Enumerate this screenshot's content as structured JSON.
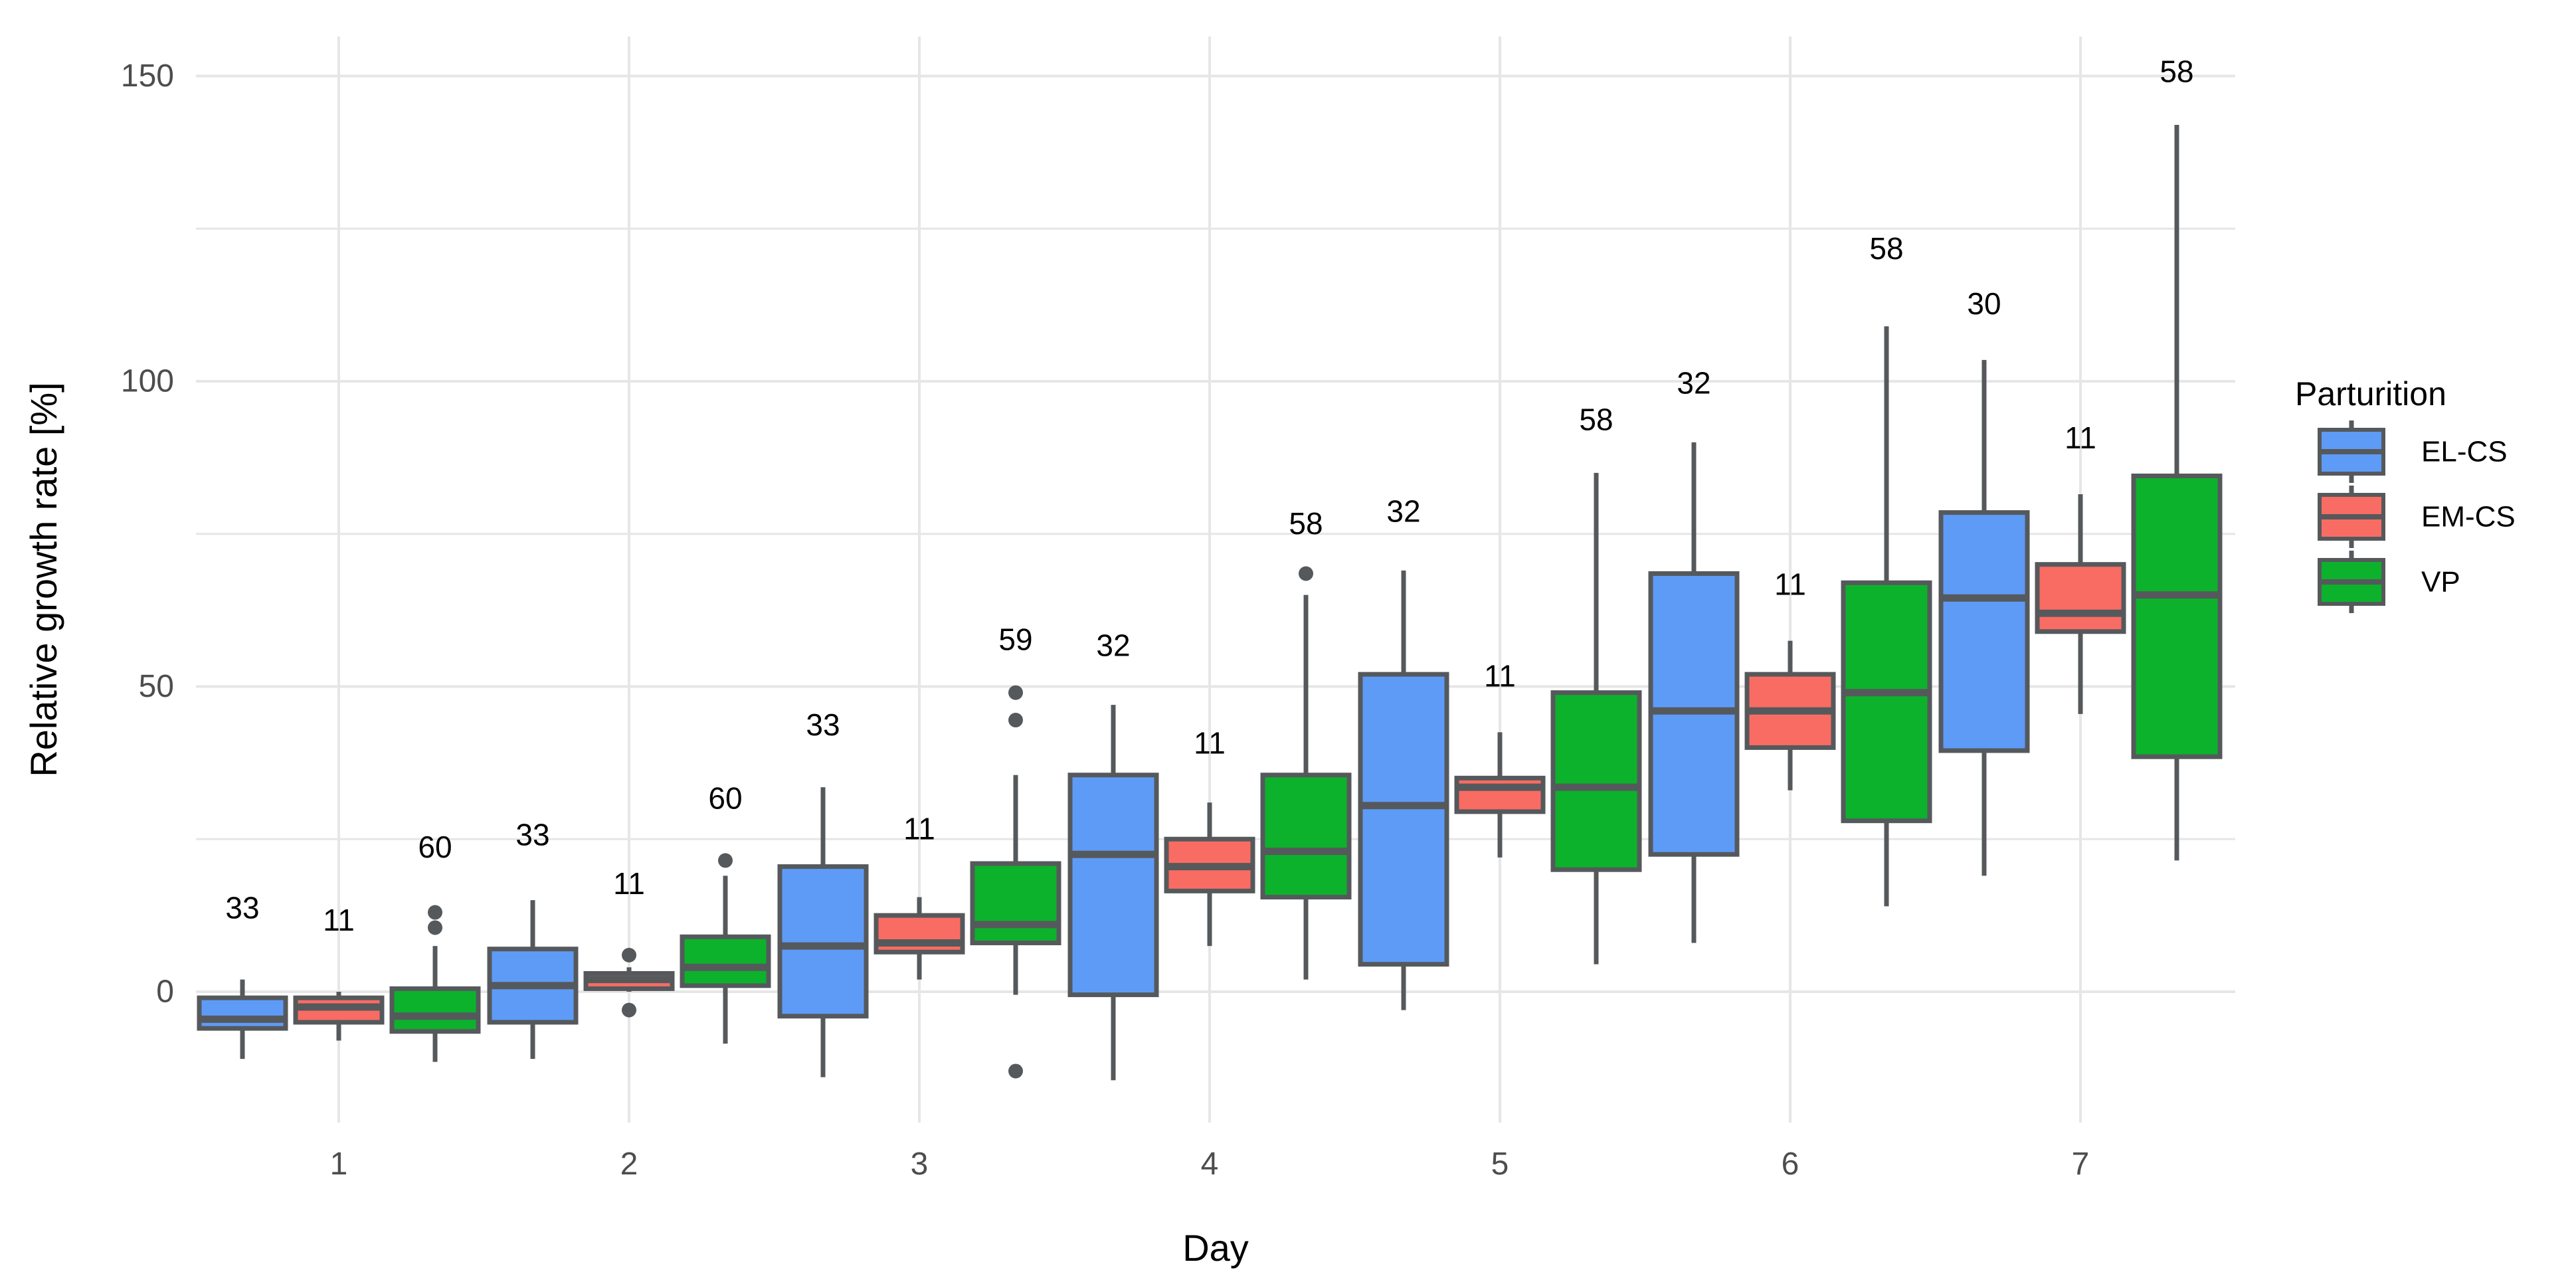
{
  "chart_data": {
    "type": "boxplot",
    "title": "",
    "xlabel": "Day",
    "ylabel": "Relative growth rate [%]",
    "x_categories": [
      "1",
      "2",
      "3",
      "4",
      "5",
      "6",
      "7"
    ],
    "y_major_ticks": [
      0,
      50,
      100,
      150
    ],
    "y_minor_ticks": [
      25,
      75,
      125
    ],
    "ylim": [
      -21,
      156
    ],
    "grid": true,
    "legend": {
      "title": "Parturition",
      "position": "right",
      "entries": [
        "EL-CS",
        "EM-CS",
        "VP"
      ]
    },
    "style": {
      "box_stroke": "#55595c",
      "grid_color": "#e6e6e6",
      "tick_label_color": "#4d4d4d",
      "text_color": "#000000",
      "background": "#ffffff"
    },
    "series": [
      {
        "name": "EL-CS",
        "fill": "#5e9bf7",
        "boxes": [
          {
            "day": "1",
            "n": "33",
            "low": -11,
            "q1": -6,
            "median": -4.5,
            "q3": -1,
            "high": 2,
            "outliers": [],
            "n_label_y": 12
          },
          {
            "day": "2",
            "n": "33",
            "low": -11,
            "q1": -5,
            "median": 1,
            "q3": 7,
            "high": 15,
            "outliers": [],
            "n_label_y": 24
          },
          {
            "day": "3",
            "n": "33",
            "low": -14,
            "q1": -4,
            "median": 7.5,
            "q3": 20.5,
            "high": 33.5,
            "outliers": [],
            "n_label_y": 42
          },
          {
            "day": "4",
            "n": "32",
            "low": -14.5,
            "q1": -0.5,
            "median": 22.5,
            "q3": 35.5,
            "high": 47,
            "outliers": [],
            "n_label_y": 55
          },
          {
            "day": "5",
            "n": "32",
            "low": -3,
            "q1": 4.5,
            "median": 30.5,
            "q3": 52,
            "high": 69,
            "outliers": [],
            "n_label_y": 77
          },
          {
            "day": "6",
            "n": "32",
            "low": 8,
            "q1": 22.5,
            "median": 46,
            "q3": 68.5,
            "high": 90,
            "outliers": [],
            "n_label_y": 98
          },
          {
            "day": "7",
            "n": "30",
            "low": 19,
            "q1": 39.5,
            "median": 64.5,
            "q3": 78.5,
            "high": 103.5,
            "outliers": [],
            "n_label_y": 111
          }
        ]
      },
      {
        "name": "EM-CS",
        "fill": "#f96c63",
        "boxes": [
          {
            "day": "1",
            "n": "11",
            "low": -8,
            "q1": -5,
            "median": -2.5,
            "q3": -1,
            "high": 0,
            "outliers": [],
            "n_label_y": 10
          },
          {
            "day": "2",
            "n": "11",
            "low": 0,
            "q1": 0.5,
            "median": 2,
            "q3": 3,
            "high": 4,
            "outliers": [
              6,
              -3
            ],
            "n_label_y": 16
          },
          {
            "day": "3",
            "n": "11",
            "low": 2,
            "q1": 6.5,
            "median": 8,
            "q3": 12.5,
            "high": 15.5,
            "outliers": [],
            "n_label_y": 25
          },
          {
            "day": "4",
            "n": "11",
            "low": 7.5,
            "q1": 16.5,
            "median": 20.5,
            "q3": 25,
            "high": 31,
            "outliers": [],
            "n_label_y": 39
          },
          {
            "day": "5",
            "n": "11",
            "low": 22,
            "q1": 29.5,
            "median": 33.5,
            "q3": 35,
            "high": 42.5,
            "outliers": [],
            "n_label_y": 50
          },
          {
            "day": "6",
            "n": "11",
            "low": 33,
            "q1": 40,
            "median": 46,
            "q3": 52,
            "high": 57.5,
            "outliers": [],
            "n_label_y": 65
          },
          {
            "day": "7",
            "n": "11",
            "low": 45.5,
            "q1": 59,
            "median": 62,
            "q3": 70,
            "high": 81.5,
            "outliers": [],
            "n_label_y": 89
          }
        ]
      },
      {
        "name": "VP",
        "fill": "#0cb22c",
        "boxes": [
          {
            "day": "1",
            "n": "60",
            "low": -11.5,
            "q1": -6.5,
            "median": -4,
            "q3": 0.5,
            "high": 7.5,
            "outliers": [
              10.5,
              13
            ],
            "n_label_y": 22
          },
          {
            "day": "2",
            "n": "60",
            "low": -8.5,
            "q1": 1,
            "median": 4,
            "q3": 9,
            "high": 19,
            "outliers": [
              21.5
            ],
            "n_label_y": 30
          },
          {
            "day": "3",
            "n": "59",
            "low": -0.5,
            "q1": 8,
            "median": 11,
            "q3": 21,
            "high": 35.5,
            "outliers": [
              44.5,
              49,
              -13
            ],
            "n_label_y": 56
          },
          {
            "day": "4",
            "n": "58",
            "low": 2,
            "q1": 15.5,
            "median": 23,
            "q3": 35.5,
            "high": 65,
            "outliers": [
              68.5
            ],
            "n_label_y": 75
          },
          {
            "day": "5",
            "n": "58",
            "low": 4.5,
            "q1": 20,
            "median": 33.5,
            "q3": 49,
            "high": 85,
            "outliers": [],
            "n_label_y": 92
          },
          {
            "day": "6",
            "n": "58",
            "low": 14,
            "q1": 28,
            "median": 49,
            "q3": 67,
            "high": 109,
            "outliers": [],
            "n_label_y": 120
          },
          {
            "day": "7",
            "n": "58",
            "low": 21.5,
            "q1": 38.5,
            "median": 65,
            "q3": 84.5,
            "high": 142,
            "outliers": [],
            "n_label_y": 149
          }
        ]
      }
    ]
  }
}
